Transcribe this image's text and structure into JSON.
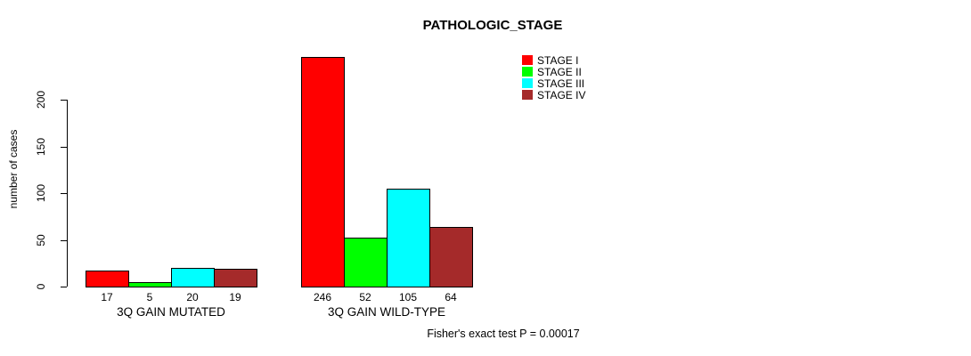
{
  "title": "PATHOLOGIC_STAGE",
  "footer": "Fisher's exact test P = 0.00017",
  "y_axis": {
    "label": "number of cases"
  },
  "legend": {
    "items": [
      {
        "label": "STAGE I",
        "color": "#FF0000"
      },
      {
        "label": "STAGE II",
        "color": "#00FF00"
      },
      {
        "label": "STAGE III",
        "color": "#00FFFF"
      },
      {
        "label": "STAGE IV",
        "color": "#A52A2A"
      }
    ]
  },
  "chart_data": {
    "type": "bar",
    "title": "PATHOLOGIC_STAGE",
    "xlabel": "",
    "ylabel": "number of cases",
    "ylim": [
      0,
      200
    ],
    "yticks": [
      0,
      50,
      100,
      150,
      200
    ],
    "grid": false,
    "legend_position": "top-right",
    "categories": [
      "3Q GAIN MUTATED",
      "3Q GAIN WILD-TYPE"
    ],
    "series": [
      {
        "name": "STAGE I",
        "color": "#FF0000",
        "values": [
          17,
          246
        ]
      },
      {
        "name": "STAGE II",
        "color": "#00FF00",
        "values": [
          5,
          52
        ]
      },
      {
        "name": "STAGE III",
        "color": "#00FFFF",
        "values": [
          20,
          105
        ]
      },
      {
        "name": "STAGE IV",
        "color": "#A52A2A",
        "values": [
          19,
          64
        ]
      }
    ],
    "bar_labels": [
      [
        "17",
        "5",
        "20",
        "19"
      ],
      [
        "246",
        "52",
        "105",
        "64"
      ]
    ],
    "annotation": "Fisher's exact test P = 0.00017"
  }
}
